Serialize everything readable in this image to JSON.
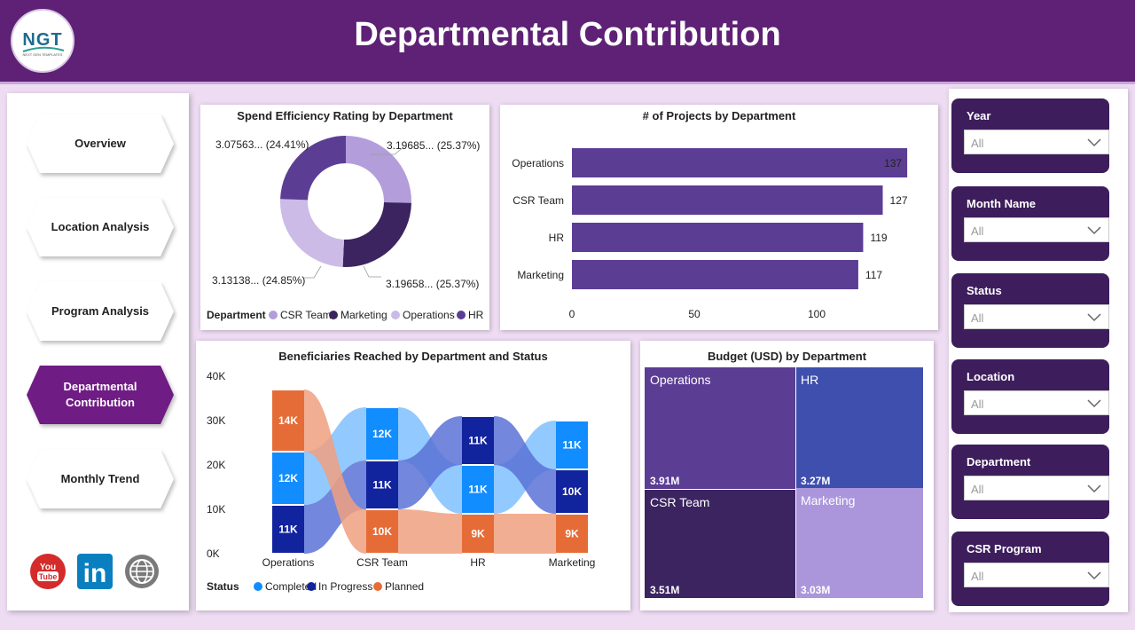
{
  "header": {
    "title": "Departmental Contribution",
    "logo_text": "NGT",
    "logo_subtext": "NEXT GEN TEMPLATES"
  },
  "nav": {
    "items": [
      {
        "label": "Overview",
        "active": false
      },
      {
        "label": "Location Analysis",
        "active": false
      },
      {
        "label": "Program Analysis",
        "active": false
      },
      {
        "label": "Departmental Contribution",
        "active": true
      },
      {
        "label": "Monthly Trend",
        "active": false
      }
    ],
    "social": [
      {
        "icon": "youtube-icon",
        "text": "You Tube"
      },
      {
        "icon": "linkedin-icon",
        "text": "in"
      },
      {
        "icon": "web-icon",
        "text": ""
      }
    ]
  },
  "filters": [
    {
      "label": "Year",
      "value": "All"
    },
    {
      "label": "Month Name",
      "value": "All"
    },
    {
      "label": "Status",
      "value": "All"
    },
    {
      "label": "Location",
      "value": "All"
    },
    {
      "label": "Department",
      "value": "All"
    },
    {
      "label": "CSR Program",
      "value": "All"
    }
  ],
  "colors": {
    "header": "#5e2175",
    "csr_team": "#b39ddb",
    "marketing": "#3b2460",
    "operations": "#cbbbe6",
    "hr": "#5c3d94",
    "bar": "#5c3d94",
    "completed": "#118dff",
    "in_progress": "#12239e",
    "planned": "#e66c37"
  },
  "chart_data": [
    {
      "type": "pie",
      "variant": "donut",
      "title": "Spend Efficiency Rating by Department",
      "legend_title": "Department",
      "categories": [
        "CSR Team",
        "Marketing",
        "Operations",
        "HR"
      ],
      "values": [
        3.19685,
        3.19658,
        3.13138,
        3.07563
      ],
      "labels": [
        "3.19685... (25.37%)",
        "3.19658... (25.37%)",
        "3.13138... (24.85%)",
        "3.07563... (24.41%)"
      ]
    },
    {
      "type": "bar",
      "orientation": "horizontal",
      "title": "# of Projects by Department",
      "categories": [
        "Operations",
        "CSR Team",
        "HR",
        "Marketing"
      ],
      "values": [
        137,
        127,
        119,
        117
      ],
      "xticks": [
        0,
        50,
        100
      ],
      "xlim": [
        0,
        140
      ]
    },
    {
      "type": "bar",
      "variant": "stacked-ribbon",
      "title": "Beneficiaries Reached by Department and Status",
      "legend_title": "Status",
      "categories": [
        "Operations",
        "CSR Team",
        "HR",
        "Marketing"
      ],
      "yticks": [
        "0K",
        "10K",
        "20K",
        "30K",
        "40K"
      ],
      "ylim": [
        0,
        40000
      ],
      "series": [
        {
          "name": "Completed",
          "values": [
            12000,
            12000,
            11000,
            11000
          ],
          "labels": [
            "12K",
            "12K",
            "11K",
            "11K"
          ]
        },
        {
          "name": "In Progress",
          "values": [
            11000,
            11000,
            11000,
            10000
          ],
          "labels": [
            "11K",
            "11K",
            "11K",
            "10K"
          ]
        },
        {
          "name": "Planned",
          "values": [
            14000,
            10000,
            9000,
            9000
          ],
          "labels": [
            "14K",
            "10K",
            "9K",
            "9K"
          ]
        }
      ]
    },
    {
      "type": "treemap",
      "title": "Budget (USD) by Department",
      "categories": [
        "Operations",
        "CSR Team",
        "HR",
        "Marketing"
      ],
      "values": [
        3910000,
        3510000,
        3270000,
        3030000
      ],
      "labels": [
        "3.91M",
        "3.51M",
        "3.27M",
        "3.03M"
      ]
    }
  ]
}
